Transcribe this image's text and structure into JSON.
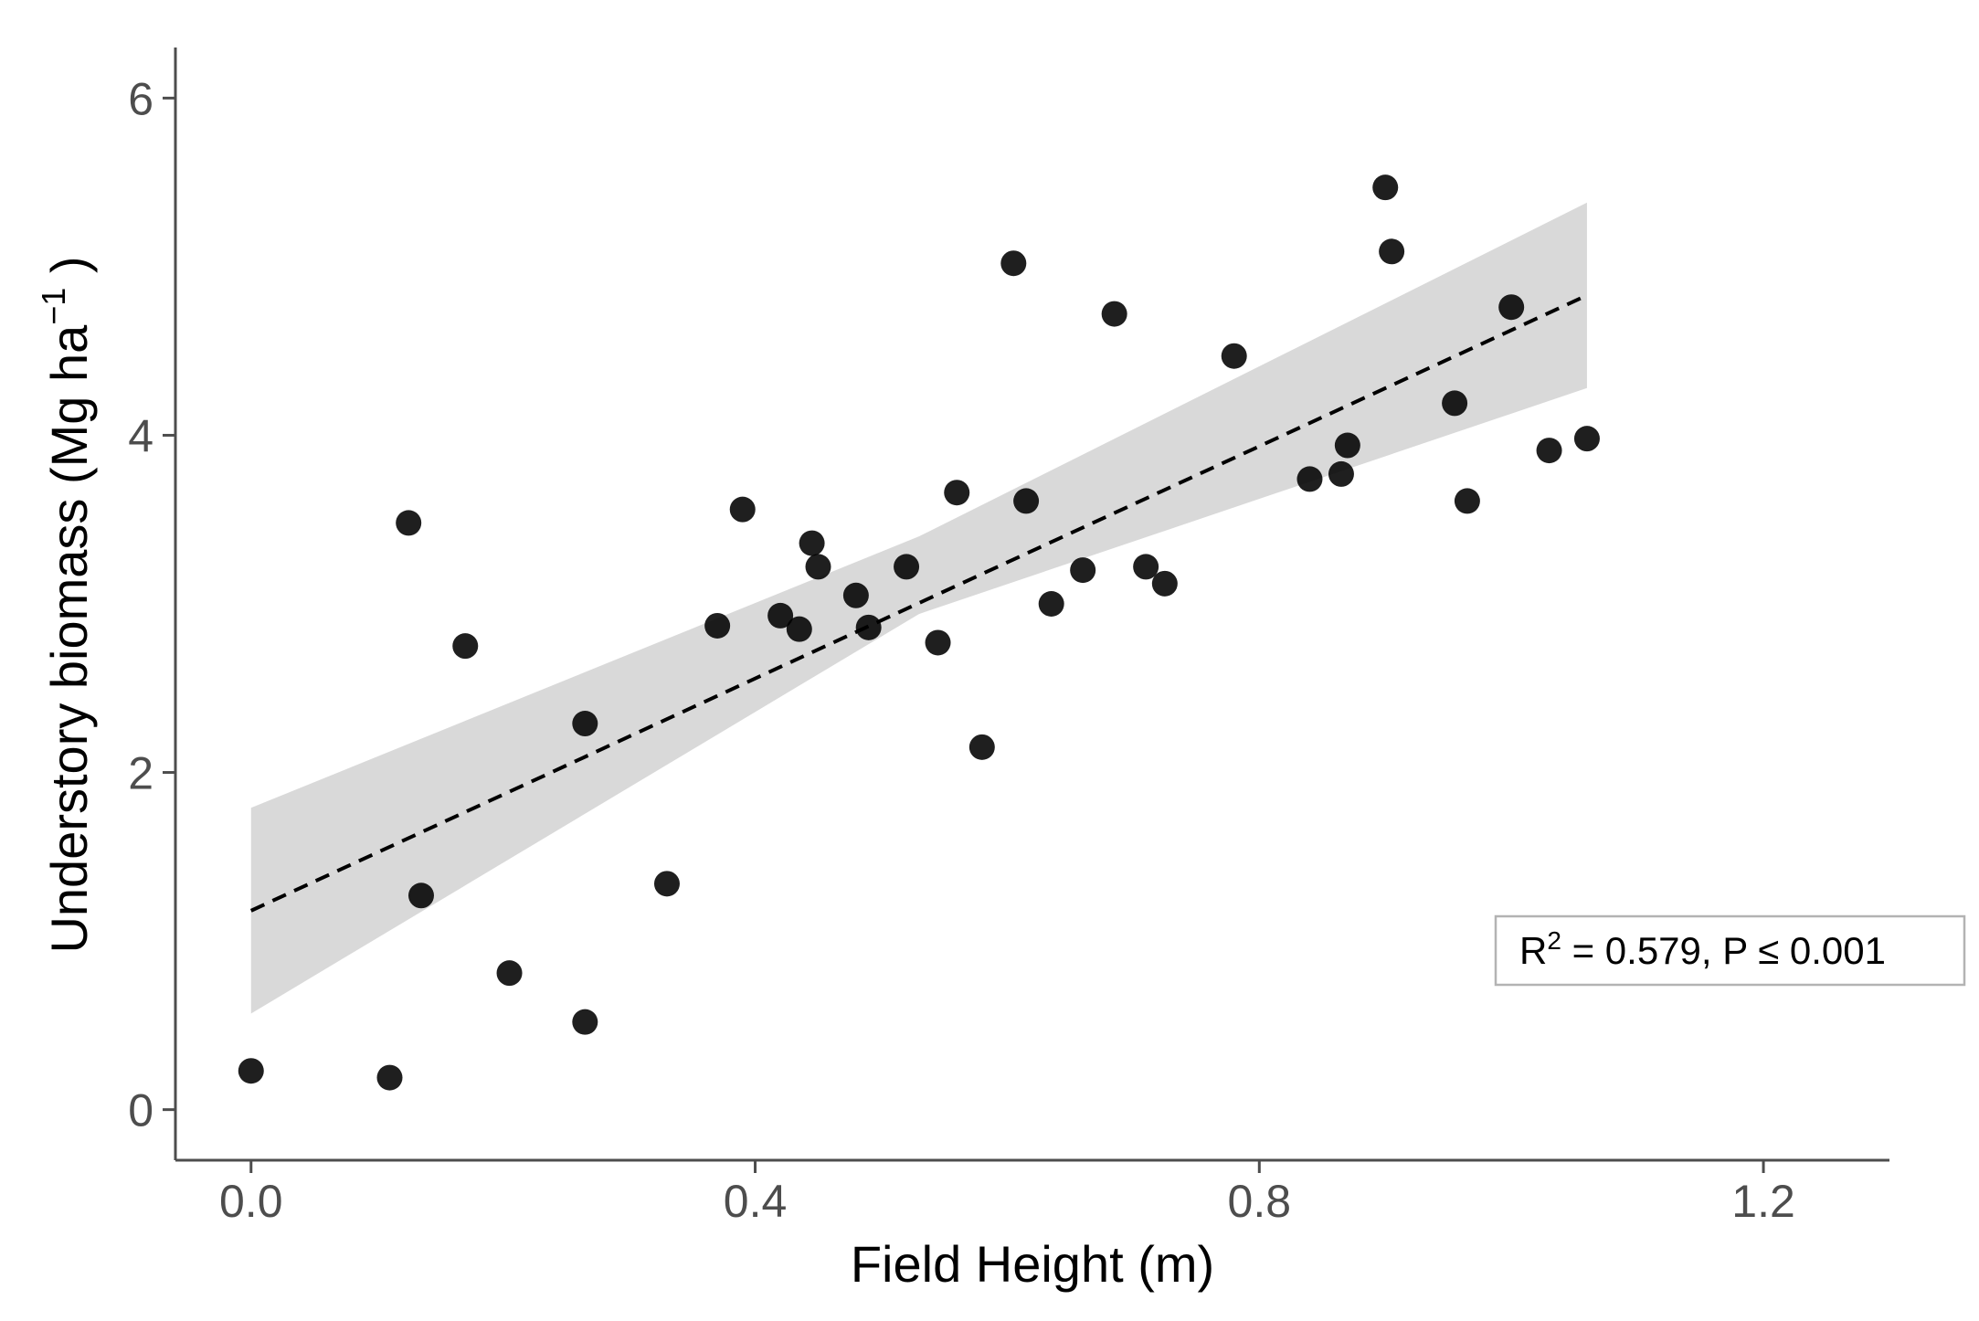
{
  "chart_data": {
    "type": "scatter",
    "xlabel": "Field Height (m)",
    "ylabel": {
      "text": "Understory biomass (Mg ha",
      "superscript": "−1",
      "suffix": " )"
    },
    "xlim": [
      -0.06,
      1.3
    ],
    "ylim": [
      -0.3,
      6.3
    ],
    "x_ticks": [
      0.0,
      0.4,
      0.8,
      1.2
    ],
    "x_tick_labels": [
      "0.0",
      "0.4",
      "0.8",
      "1.2"
    ],
    "y_ticks": [
      0,
      2,
      4,
      6
    ],
    "y_tick_labels": [
      "0",
      "2",
      "4",
      "6"
    ],
    "grid": false,
    "legend": "none",
    "annotation": {
      "prefix": "R",
      "superscript": "2",
      "suffix": " = 0.579, P ≤ 0.001",
      "placement": "bottom-right"
    },
    "colors": {
      "points": "#000000",
      "band": "#d9d9d9",
      "fit_line": "#000000",
      "axis": "#4d4d4d"
    },
    "series": [
      {
        "type": "scatter",
        "x": [
          0.0,
          0.11,
          0.125,
          0.135,
          0.17,
          0.205,
          0.265,
          0.265,
          0.33,
          0.37,
          0.39,
          0.42,
          0.435,
          0.445,
          0.45,
          0.48,
          0.49,
          0.52,
          0.545,
          0.56,
          0.58,
          0.605,
          0.615,
          0.635,
          0.66,
          0.685,
          0.71,
          0.725,
          0.78,
          0.84,
          0.865,
          0.87,
          0.9,
          0.905,
          0.955,
          0.965,
          1.0,
          1.03,
          1.06
        ],
        "y": [
          0.23,
          0.19,
          3.48,
          1.27,
          2.75,
          0.81,
          2.29,
          0.52,
          1.34,
          2.87,
          3.56,
          2.93,
          2.85,
          3.36,
          3.22,
          3.05,
          2.86,
          3.22,
          2.77,
          3.66,
          2.15,
          5.02,
          3.61,
          3.0,
          3.2,
          4.72,
          3.22,
          3.12,
          4.47,
          3.74,
          3.77,
          3.94,
          5.47,
          5.09,
          4.19,
          3.61,
          4.76,
          3.91,
          3.98
        ]
      },
      {
        "type": "line",
        "style": "dashed",
        "x": [
          0.0,
          1.06
        ],
        "y": [
          1.18,
          4.83
        ]
      },
      {
        "type": "area",
        "style": "confidence band",
        "x": [
          0.0,
          0.53,
          1.06
        ],
        "lower": [
          0.57,
          2.94,
          4.28
        ],
        "upper": [
          1.79,
          3.4,
          5.38
        ]
      }
    ]
  }
}
